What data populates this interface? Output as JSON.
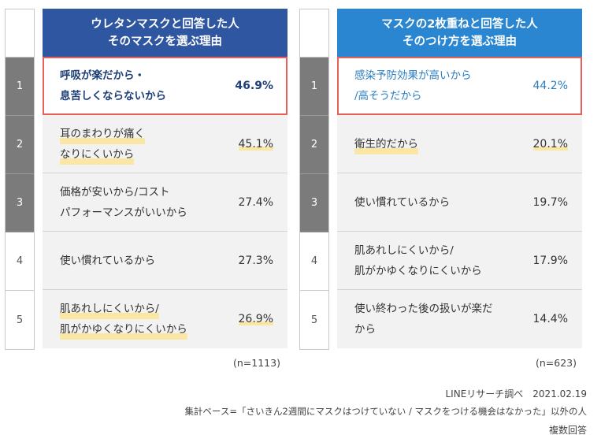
{
  "left_panel": {
    "header_line1": "ウレタンマスクと回答した人",
    "header_line2": "そのマスクを選ぶ理由",
    "header_color": "#2f56a0",
    "rows": [
      {
        "rank": "1",
        "line1": "呼吸が楽だから・",
        "line2": "息苦しくならないから",
        "pct": "46.9%"
      },
      {
        "rank": "2",
        "line1": "耳のまわりが痛く",
        "line2": "なりにくいから",
        "pct": "45.1%"
      },
      {
        "rank": "3",
        "line1": "価格が安いから/コスト",
        "line2": "パフォーマンスがいいから",
        "pct": "27.4%"
      },
      {
        "rank": "4",
        "line1": "使い慣れているから",
        "line2": "",
        "pct": "27.3%"
      },
      {
        "rank": "5",
        "line1": "肌あれしにくいから/",
        "line2": "肌がかゆくなりにくいから",
        "pct": "26.9%"
      }
    ],
    "n_note": "(n=1113)"
  },
  "right_panel": {
    "header_line1": "マスクの2枚重ねと回答した人",
    "header_line2": "そのつけ方を選ぶ理由",
    "header_color": "#2a86d1",
    "rows": [
      {
        "rank": "1",
        "line1": "感染予防効果が高いから",
        "line2": "/高そうだから",
        "pct": "44.2%"
      },
      {
        "rank": "2",
        "line1": "衛生的だから",
        "line2": "",
        "pct": "20.1%"
      },
      {
        "rank": "3",
        "line1": "使い慣れているから",
        "line2": "",
        "pct": "19.7%"
      },
      {
        "rank": "4",
        "line1": "肌あれしにくいから/",
        "line2": "肌がかゆくなりにくいから",
        "pct": "17.9%"
      },
      {
        "rank": "5",
        "line1": "使い終わった後の扱いが楽だ",
        "line2": "から",
        "pct": "14.4%"
      }
    ],
    "n_note": "(n=623)"
  },
  "footer": {
    "source": "LINEリサーチ調べ　2021.02.19",
    "base": "集計ベース=「さいきん2週間にマスクはつけていない / マスクをつける機会はなかった」以外の人",
    "note": "複数回答"
  },
  "colors": {
    "highlight_border": "#e8605a",
    "underline_marker": "#fbe7a4",
    "rank_dark": "#7b7b7b"
  }
}
